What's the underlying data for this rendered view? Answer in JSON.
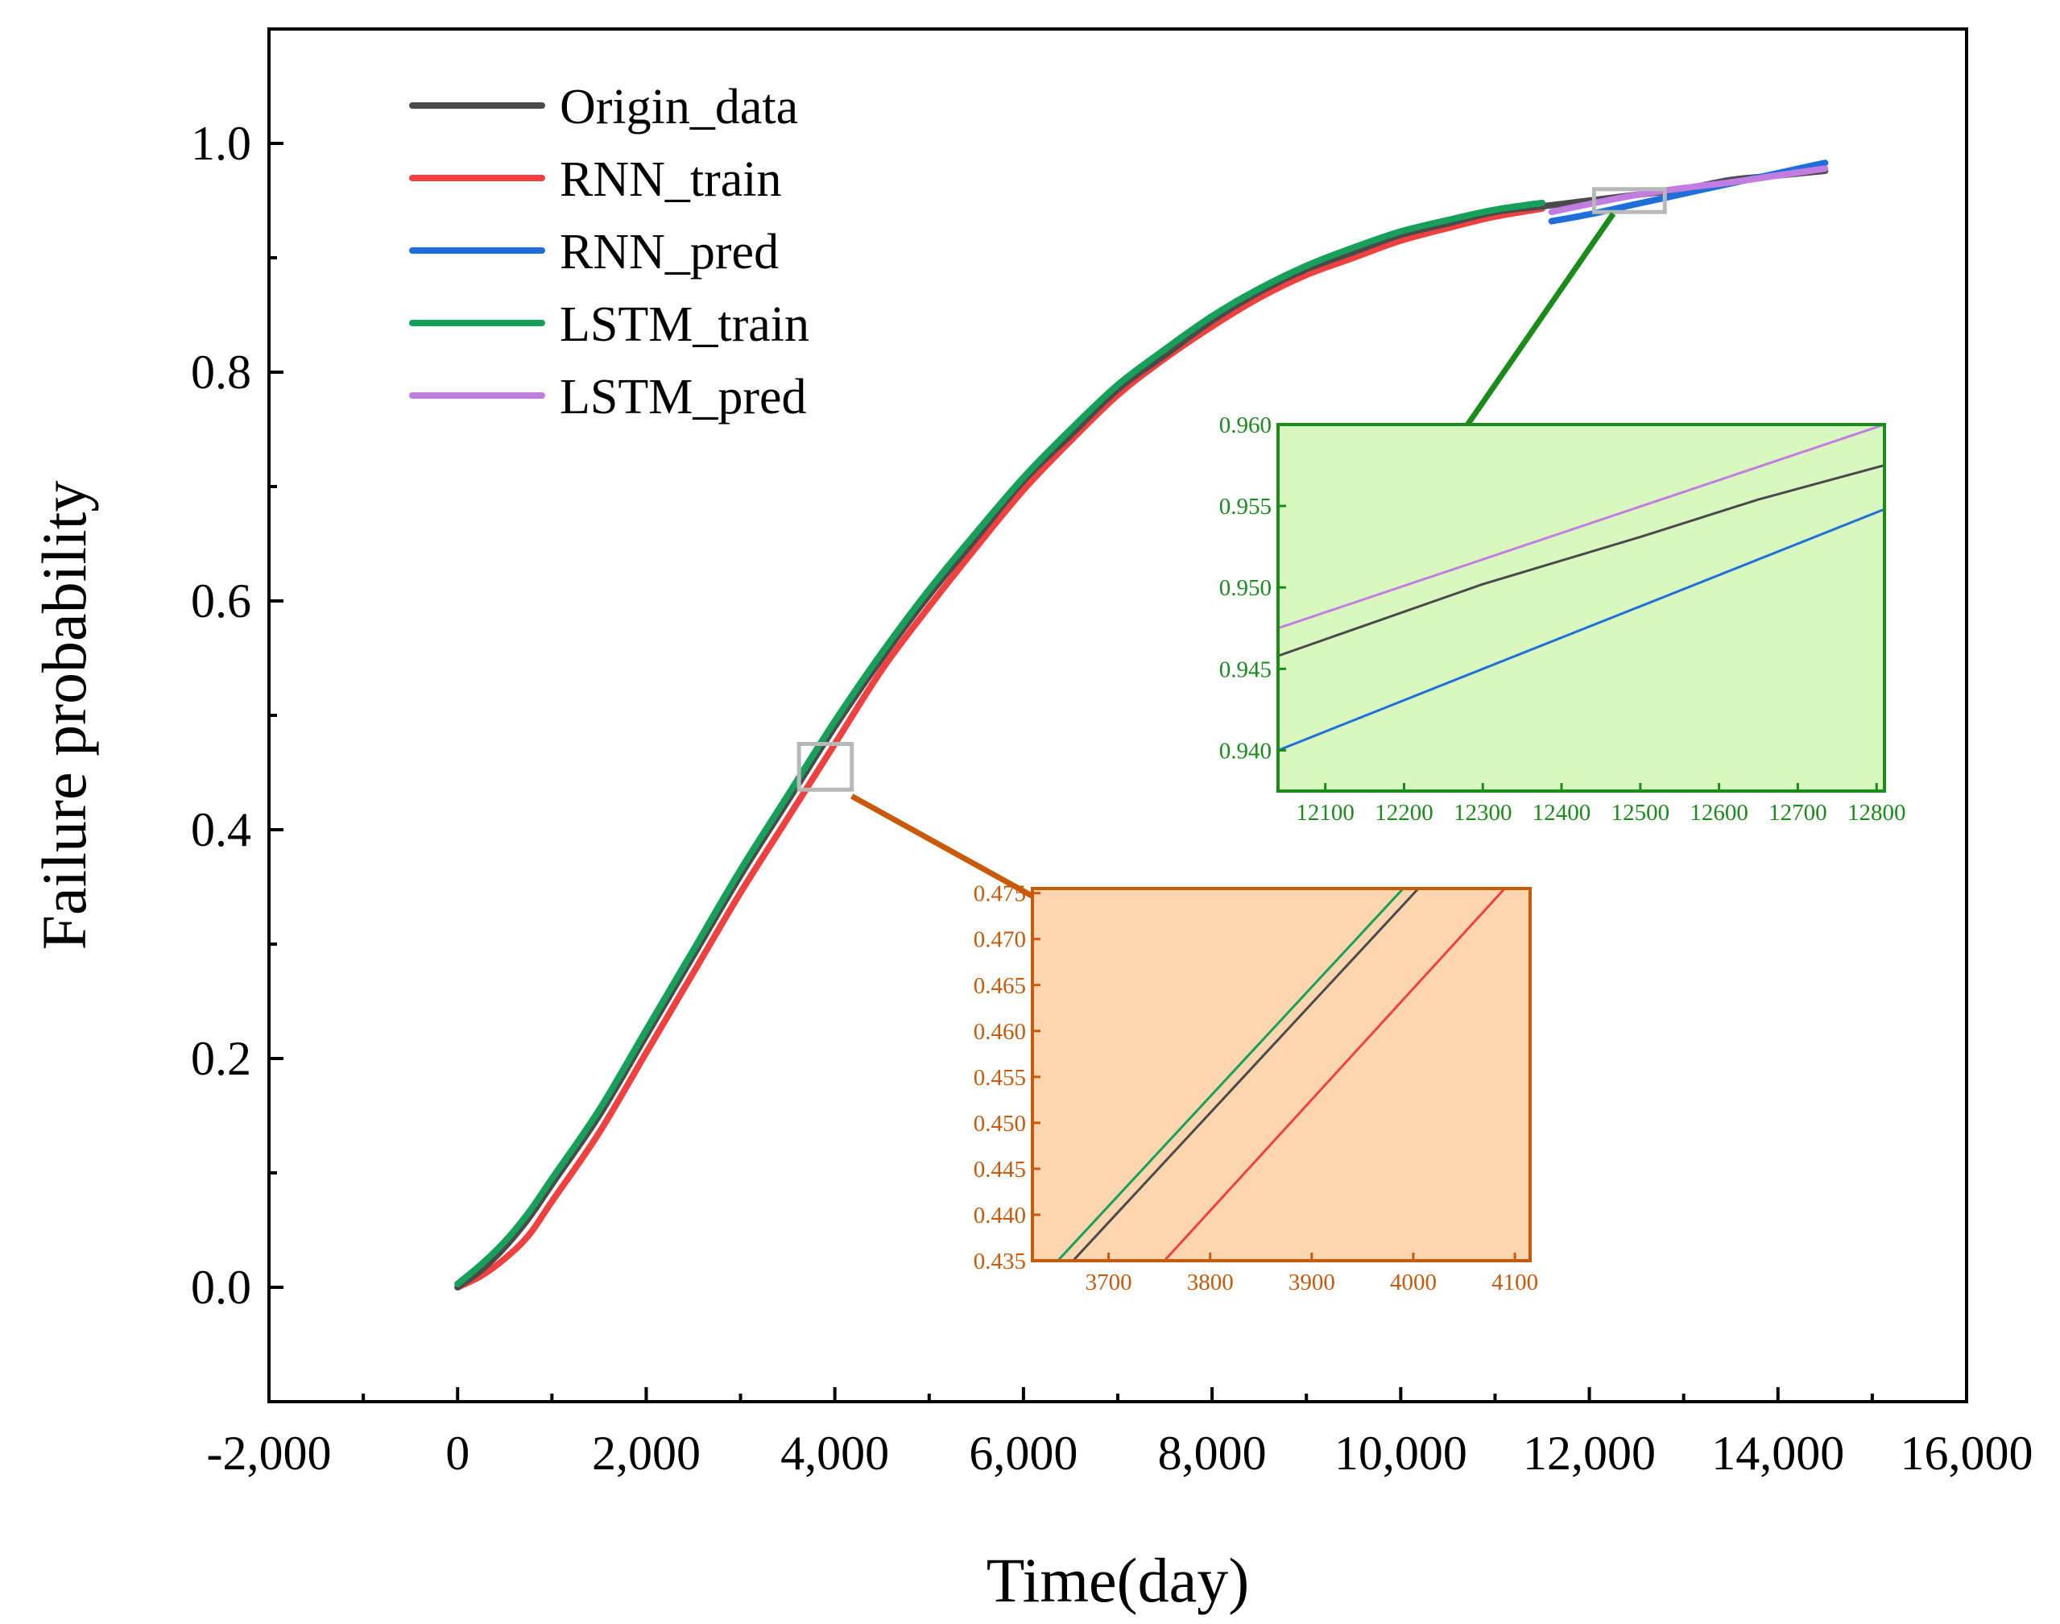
{
  "chart_data": {
    "type": "line",
    "xlabel": "Time(day)",
    "ylabel": "Failure probability",
    "xlim": [
      -2000,
      16000
    ],
    "ylim": [
      -0.1,
      1.1
    ],
    "x_ticks": [
      -2000,
      0,
      2000,
      4000,
      6000,
      8000,
      10000,
      12000,
      14000,
      16000
    ],
    "x_tick_labels": [
      "-2,000",
      "0",
      "2,000",
      "4,000",
      "6,000",
      "8,000",
      "10,000",
      "12,000",
      "14,000",
      "16,000"
    ],
    "y_ticks": [
      0.0,
      0.2,
      0.4,
      0.6,
      0.8,
      1.0
    ],
    "y_tick_labels": [
      "0.0",
      "0.2",
      "0.4",
      "0.6",
      "0.8",
      "1.0"
    ],
    "legend_position": "top-left",
    "series": [
      {
        "name": "Origin_data",
        "color": "#4a4a4a",
        "x": [
          0,
          250,
          500,
          750,
          1000,
          1500,
          2000,
          2500,
          3000,
          3500,
          4000,
          4500,
          5000,
          5500,
          6000,
          6500,
          7000,
          7500,
          8000,
          8500,
          9000,
          9500,
          10000,
          10500,
          11000,
          11500,
          12000,
          12500,
          13000,
          13500,
          14000,
          14500
        ],
        "y": [
          0.0,
          0.015,
          0.035,
          0.06,
          0.09,
          0.15,
          0.22,
          0.29,
          0.36,
          0.425,
          0.49,
          0.55,
          0.605,
          0.655,
          0.705,
          0.745,
          0.785,
          0.815,
          0.845,
          0.87,
          0.89,
          0.905,
          0.92,
          0.93,
          0.94,
          0.945,
          0.95,
          0.955,
          0.96,
          0.968,
          0.972,
          0.976
        ]
      },
      {
        "name": "RNN_train",
        "color": "#f04040",
        "x": [
          0,
          250,
          500,
          750,
          1000,
          1500,
          2000,
          2500,
          3000,
          3500,
          4000,
          4500,
          5000,
          5500,
          6000,
          6500,
          7000,
          7500,
          8000,
          8500,
          9000,
          9500,
          10000,
          10500,
          11000,
          11500
        ],
        "y": [
          0.0,
          0.01,
          0.025,
          0.045,
          0.075,
          0.135,
          0.205,
          0.275,
          0.345,
          0.41,
          0.475,
          0.54,
          0.595,
          0.647,
          0.697,
          0.74,
          0.78,
          0.812,
          0.84,
          0.865,
          0.885,
          0.9,
          0.915,
          0.926,
          0.936,
          0.943
        ]
      },
      {
        "name": "RNN_pred",
        "color": "#1e6fd9",
        "x": [
          11600,
          12000,
          12500,
          13000,
          13500,
          14000,
          14500
        ],
        "y": [
          0.932,
          0.938,
          0.947,
          0.956,
          0.965,
          0.974,
          0.983
        ]
      },
      {
        "name": "LSTM_train",
        "color": "#17a05a",
        "x": [
          0,
          250,
          500,
          750,
          1000,
          1500,
          2000,
          2500,
          3000,
          3500,
          4000,
          4500,
          5000,
          5500,
          6000,
          6500,
          7000,
          7500,
          8000,
          8500,
          9000,
          9500,
          10000,
          10500,
          11000,
          11500
        ],
        "y": [
          0.003,
          0.02,
          0.04,
          0.065,
          0.095,
          0.155,
          0.225,
          0.295,
          0.365,
          0.43,
          0.495,
          0.555,
          0.61,
          0.66,
          0.708,
          0.75,
          0.789,
          0.82,
          0.849,
          0.873,
          0.893,
          0.909,
          0.923,
          0.933,
          0.942,
          0.948
        ]
      },
      {
        "name": "LSTM_pred",
        "color": "#c27de0",
        "x": [
          11600,
          12000,
          12500,
          13000,
          13500,
          14000,
          14500
        ],
        "y": [
          0.94,
          0.947,
          0.955,
          0.961,
          0.966,
          0.972,
          0.978
        ]
      }
    ],
    "insets": [
      {
        "name": "upper-inset",
        "theme_color": "#1a8c1a",
        "background": "#d8f8c0",
        "xlim": [
          12040,
          12810
        ],
        "ylim": [
          0.9375,
          0.96
        ],
        "x_ticks": [
          12100,
          12200,
          12300,
          12400,
          12500,
          12600,
          12700,
          12800
        ],
        "x_tick_labels": [
          "12100",
          "12200",
          "12300",
          "12400",
          "12500",
          "12600",
          "12700",
          "12800"
        ],
        "y_ticks": [
          0.94,
          0.945,
          0.95,
          0.955,
          0.96
        ],
        "y_tick_labels": [
          "0.940",
          "0.945",
          "0.950",
          "0.955",
          "0.960"
        ],
        "zoom_box": {
          "x": [
            12050,
            12800
          ],
          "y": [
            0.94,
            0.96
          ]
        },
        "series": [
          {
            "name": "LSTM_pred",
            "color": "#c27de0",
            "x": [
              12040,
              12810
            ],
            "y": [
              0.9475,
              0.96
            ]
          },
          {
            "name": "Origin_data",
            "color": "#4a4a4a",
            "x": [
              12040,
              12300,
              12500,
              12650,
              12810
            ],
            "y": [
              0.9458,
              0.9502,
              0.9531,
              0.9554,
              0.9575
            ]
          },
          {
            "name": "RNN_pred",
            "color": "#1e6fd9",
            "x": [
              12040,
              12810
            ],
            "y": [
              0.94,
              0.9548
            ]
          }
        ]
      },
      {
        "name": "lower-inset",
        "theme_color": "#c85a0a",
        "background": "#fdd6b0",
        "xlim": [
          3625,
          4115
        ],
        "ylim": [
          0.435,
          0.4755
        ],
        "x_ticks": [
          3700,
          3800,
          3900,
          4000,
          4100
        ],
        "x_tick_labels": [
          "3700",
          "3800",
          "3900",
          "4000",
          "4100"
        ],
        "y_ticks": [
          0.435,
          0.44,
          0.445,
          0.45,
          0.455,
          0.46,
          0.465,
          0.47,
          0.475
        ],
        "y_tick_labels": [
          "0.435",
          "0.440",
          "0.445",
          "0.450",
          "0.455",
          "0.460",
          "0.465",
          "0.470",
          "0.475"
        ],
        "zoom_box": {
          "x": [
            3620,
            4180
          ],
          "y": [
            0.435,
            0.475
          ]
        },
        "series": [
          {
            "name": "LSTM_train",
            "color": "#17a05a",
            "x": [
              3650,
              3990
            ],
            "y": [
              0.435,
              0.4755
            ]
          },
          {
            "name": "Origin_data",
            "color": "#4a4a4a",
            "x": [
              3665,
              4005
            ],
            "y": [
              0.435,
              0.4755
            ]
          },
          {
            "name": "RNN_train",
            "color": "#f04040",
            "x": [
              3755,
              4090
            ],
            "y": [
              0.435,
              0.4755
            ]
          }
        ]
      }
    ]
  }
}
